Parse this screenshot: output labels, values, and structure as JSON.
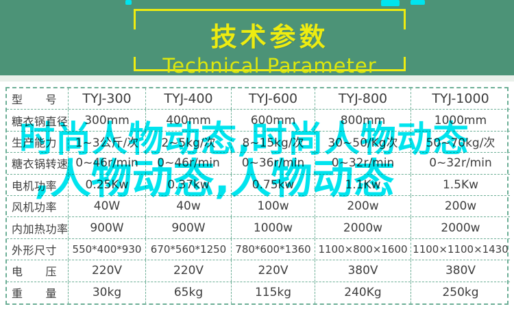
{
  "banner": {
    "title": "技术参数",
    "subtitle": "Technical Parameter"
  },
  "table": {
    "rows": [
      {
        "label": "型　　号",
        "values": [
          "TYJ-300",
          "TYJ-400",
          "TYJ-600",
          "TYJ-800",
          "TYJ-1000"
        ]
      },
      {
        "label": "糖衣锅直径",
        "values": [
          "300mm",
          "400mm",
          "600mm",
          "800mm",
          "1000mm"
        ]
      },
      {
        "label": "生产能力",
        "values": [
          "1~3公斤/次",
          "2~5kg/次",
          "8~15kg/次",
          "30~50/Kg次",
          "50~70kg/次"
        ]
      },
      {
        "label": "糖衣锅转速",
        "values": [
          "0~46r/min",
          "0~46r/min",
          "0~36r/min",
          "0~32r/min",
          "0~32r/min"
        ]
      },
      {
        "label": "电机功率",
        "values": [
          "0.25Kw",
          "0.37kw",
          "0.75kw",
          "1.1Kw",
          "1.5Kw"
        ]
      },
      {
        "label": "风机功率",
        "values": [
          "40W",
          "40w",
          "100w",
          "200w",
          "200w"
        ]
      },
      {
        "label": "内加热功率",
        "values": [
          "900W",
          "900W",
          "1000w",
          "2000w",
          "2000w"
        ]
      },
      {
        "label": "外形尺寸",
        "values": [
          "550*400*930",
          "670*560*1250",
          "780*600*1360",
          "1100×800×1600",
          "1100×1100×1430"
        ]
      },
      {
        "label": "电　　压",
        "values": [
          "220V",
          "220V",
          "220V",
          "380V",
          "380V"
        ]
      },
      {
        "label": "重　　量",
        "values": [
          "30kg",
          "65kg",
          "115kg",
          "240Kg",
          "250kg"
        ]
      }
    ]
  },
  "watermark": {
    "line1": "时尚人物动态,时尚人物动态",
    "line2": ",人物动态,人物动态"
  },
  "colors": {
    "banner_green": "#4c9377",
    "accent_yellow": "#eeec10",
    "subtitle_yellow": "#dce70e",
    "table_border_teal": "#6bae95",
    "text": "#3d3d3d",
    "watermark_cyan": "#00e4ee"
  }
}
